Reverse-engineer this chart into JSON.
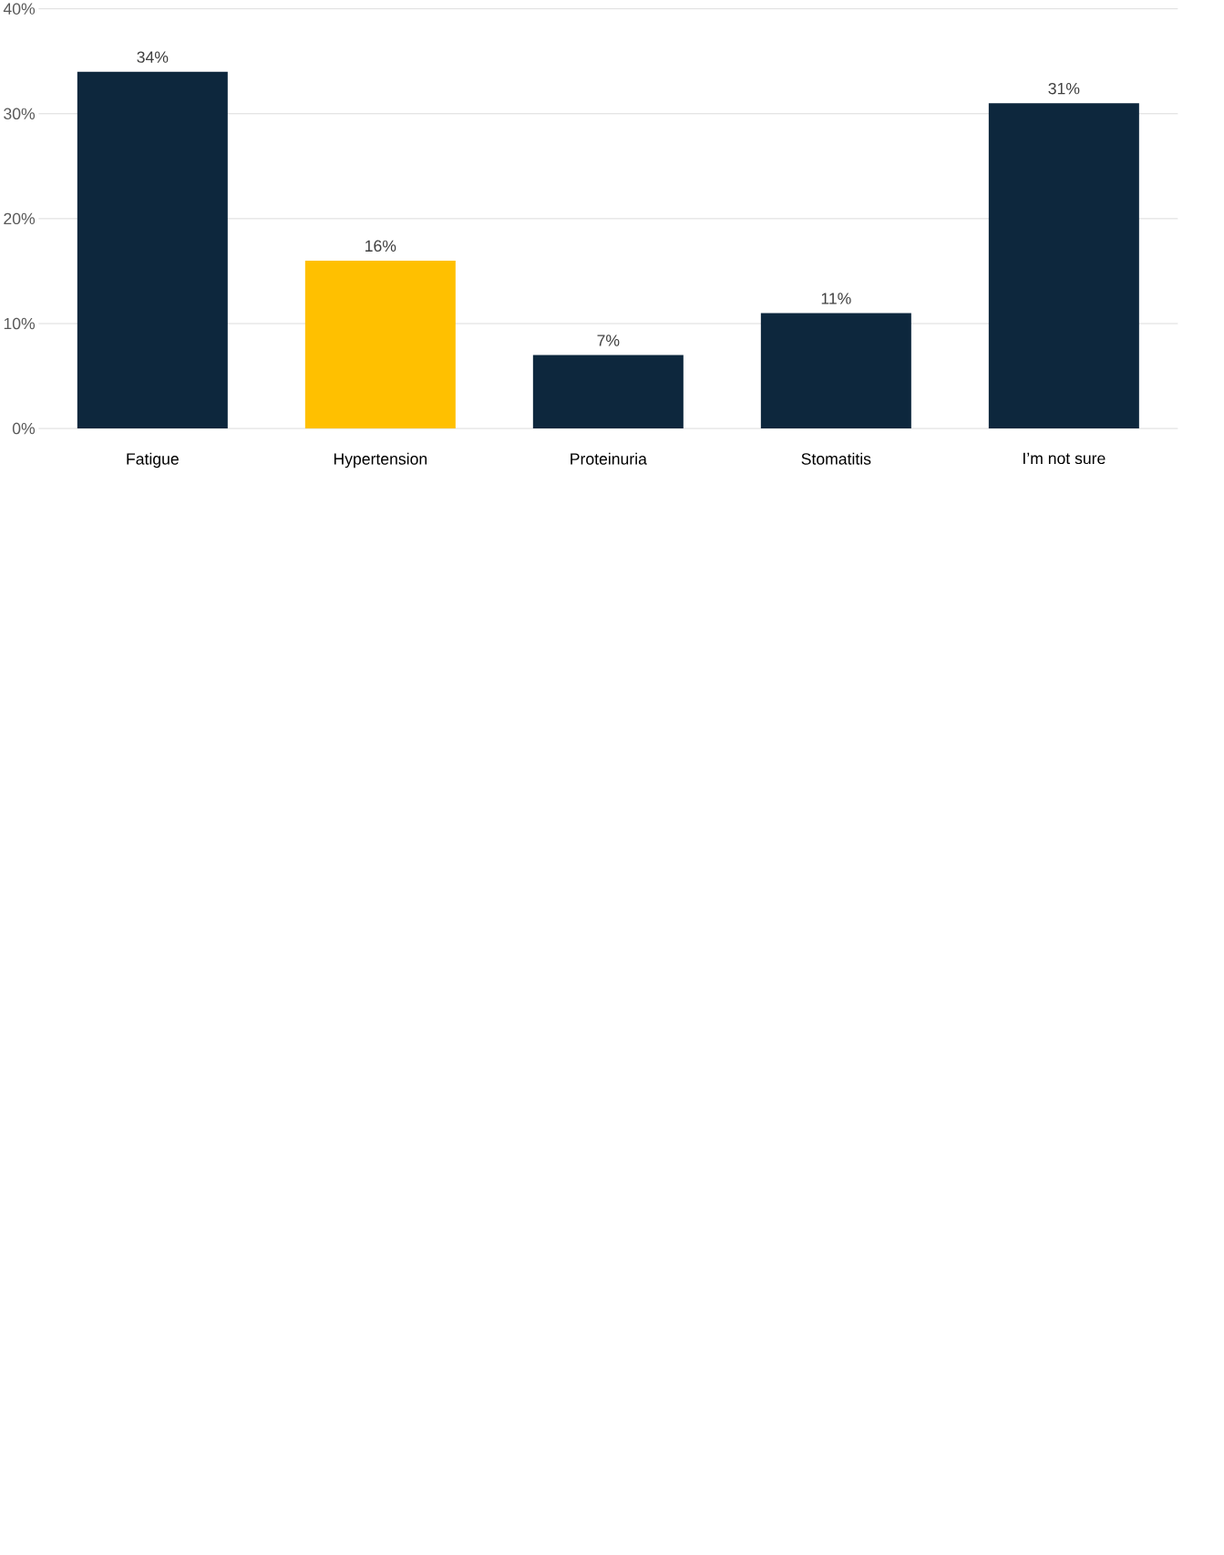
{
  "chart_data": {
    "type": "bar",
    "categories": [
      "Fatigue",
      "Hypertension",
      "Proteinuria",
      "Stomatitis",
      "I’m not sure"
    ],
    "values": [
      34,
      16,
      7,
      11,
      31
    ],
    "colors": [
      "#0d273d",
      "#ffc000",
      "#0d273d",
      "#0d273d",
      "#0d273d"
    ],
    "value_labels": [
      "34%",
      "16%",
      "7%",
      "11%",
      "31%"
    ],
    "ylim": [
      0,
      40
    ],
    "yticks": [
      {
        "value": 0,
        "label": "0%"
      },
      {
        "value": 10,
        "label": "10%"
      },
      {
        "value": 20,
        "label": "20%"
      },
      {
        "value": 30,
        "label": "30%"
      },
      {
        "value": 40,
        "label": "40%"
      }
    ],
    "grid": "y"
  }
}
